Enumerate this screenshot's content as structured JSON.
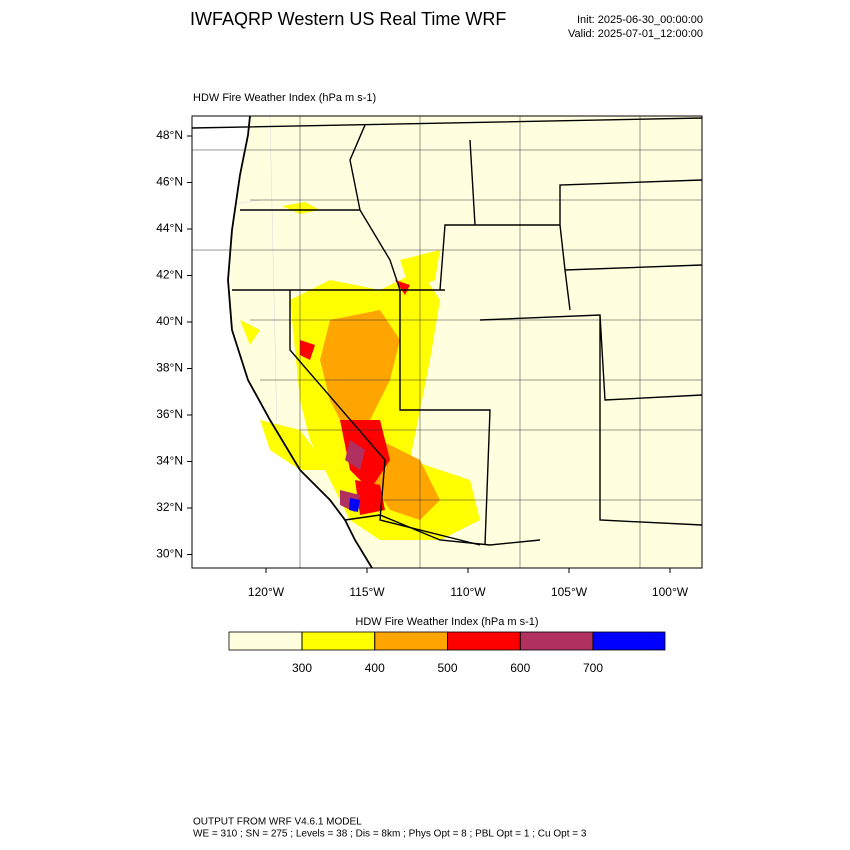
{
  "header": {
    "title": "IWFAQRP Western US Real Time WRF",
    "init": "Init: 2025-06-30_00:00:00",
    "valid": "Valid: 2025-07-01_12:00:00"
  },
  "map": {
    "subtitle": "HDW Fire Weather Index   (hPa m s-1)",
    "background": "#ffffe0",
    "lat_ticks": [
      {
        "value": 48,
        "label": "48°N"
      },
      {
        "value": 46,
        "label": "46°N"
      },
      {
        "value": 44,
        "label": "44°N"
      },
      {
        "value": 42,
        "label": "42°N"
      },
      {
        "value": 40,
        "label": "40°N"
      },
      {
        "value": 38,
        "label": "38°N"
      },
      {
        "value": 36,
        "label": "36°N"
      },
      {
        "value": 34,
        "label": "34°N"
      },
      {
        "value": 32,
        "label": "32°N"
      },
      {
        "value": 30,
        "label": "30°N"
      }
    ],
    "lon_ticks": [
      {
        "value": -120,
        "label": "120°W"
      },
      {
        "value": -115,
        "label": "115°W"
      },
      {
        "value": -110,
        "label": "110°W"
      },
      {
        "value": -105,
        "label": "105°W"
      },
      {
        "value": -100,
        "label": "100°W"
      }
    ]
  },
  "colorbar": {
    "title": "HDW Fire Weather Index (hPa m s-1)",
    "ticks": [
      300,
      400,
      500,
      600,
      700
    ],
    "colors": [
      "#ffffe0",
      "#ffff00",
      "#ffa500",
      "#ff0000",
      "#b03060",
      "#0000ff"
    ]
  },
  "footer": {
    "line1": "OUTPUT FROM WRF V4.6.1 MODEL",
    "line2": "WE = 310 ; SN = 275 ; Levels = 38 ; Dis = 8km ; Phys Opt = 8 ; PBL Opt = 1 ; Cu Opt = 3"
  }
}
